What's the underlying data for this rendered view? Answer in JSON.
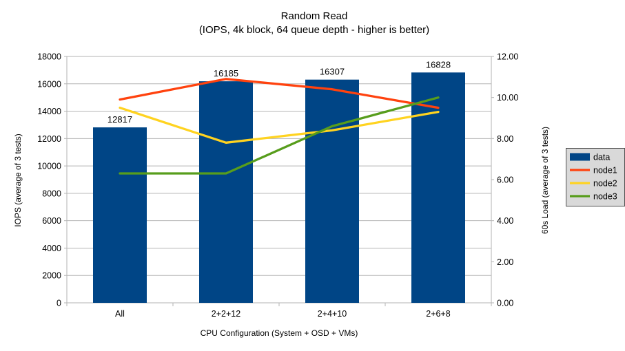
{
  "title": "Random Read",
  "subtitle": "(IOPS, 4k block, 64 queue depth - higher is better)",
  "chart_data": {
    "type": "bar",
    "categories": [
      "All",
      "2+2+12",
      "2+4+10",
      "2+6+8"
    ],
    "series": [
      {
        "name": "data",
        "type": "bar",
        "axis": "left",
        "color": "#004586",
        "values": [
          12817,
          16185,
          16307,
          16828
        ],
        "value_labels": [
          "12817",
          "16185",
          "16307",
          "16828"
        ]
      },
      {
        "name": "node1",
        "type": "line",
        "axis": "right",
        "color": "#ff420e",
        "values": [
          9.9,
          10.9,
          10.4,
          9.5
        ]
      },
      {
        "name": "node2",
        "type": "line",
        "axis": "right",
        "color": "#ffd320",
        "values": [
          9.5,
          7.8,
          8.4,
          9.3
        ]
      },
      {
        "name": "node3",
        "type": "line",
        "axis": "right",
        "color": "#579d1c",
        "values": [
          6.3,
          6.3,
          8.6,
          10.0
        ]
      }
    ],
    "left_axis": {
      "title": "IOPS (average of 3 tests)",
      "min": 0,
      "max": 18000,
      "step": 2000,
      "decimals": 0
    },
    "right_axis": {
      "title": "60s Load (average of 3 tests)",
      "min": 0,
      "max": 12,
      "step": 2,
      "decimals": 2
    },
    "x_axis": {
      "title": "CPU Configuration (System + OSD + VMs)"
    },
    "grid": "horizontal",
    "legend_position": "right",
    "colors": {
      "background": "#ffffff",
      "grid": "#b3b3b3",
      "axis": "#b3b3b3",
      "text": "#000000",
      "legend_bg": "#d9d9d9",
      "legend_border": "#4d4d4d"
    }
  }
}
